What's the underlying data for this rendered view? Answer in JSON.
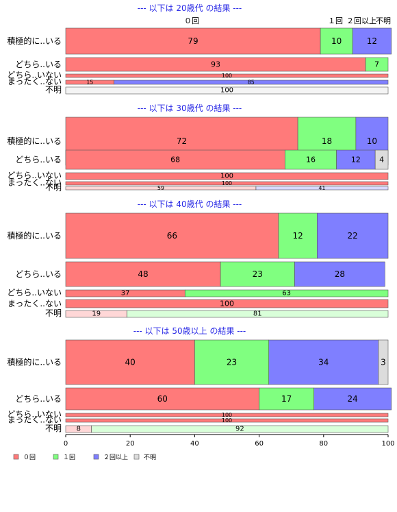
{
  "colors": {
    "zero": "#ff7a7a",
    "one": "#80ff80",
    "two_plus": "#7f7fff",
    "unknown": "#dcdcdc"
  },
  "legend": {
    "items": [
      "０回",
      "１回",
      "２回以上",
      "不明"
    ]
  },
  "top_labels": [
    "０回",
    "１回",
    "２回以上",
    "不明"
  ],
  "chart_data": {
    "type": "bar",
    "orientation": "horizontal",
    "stacked": true,
    "categories": [
      "０回",
      "１回",
      "２回以上",
      "不明"
    ],
    "xlim": [
      0,
      100
    ],
    "x_ticks": [
      0,
      20,
      40,
      60,
      80,
      100
    ],
    "panels": [
      {
        "title": "--- 以下は 20歳代 の結果 ---",
        "rows": [
          {
            "label": "積極的に..いる",
            "values": [
              79,
              10,
              12,
              0
            ]
          },
          {
            "label": "どちら..いる",
            "values": [
              93,
              7,
              0,
              0
            ]
          },
          {
            "label": "どちら..いない",
            "values": [
              100,
              0,
              0,
              0
            ]
          },
          {
            "label": "まったく..ない",
            "values": [
              15,
              0,
              85,
              0
            ]
          },
          {
            "label": "不明",
            "values": [
              0,
              0,
              0,
              100
            ]
          }
        ]
      },
      {
        "title": "--- 以下は 30歳代 の結果 ---",
        "rows": [
          {
            "label": "積極的に..いる",
            "values": [
              72,
              18,
              10,
              0
            ]
          },
          {
            "label": "どちら..いる",
            "values": [
              68,
              16,
              12,
              4
            ]
          },
          {
            "label": "どちら..いない",
            "values": [
              100,
              0,
              0,
              0
            ]
          },
          {
            "label": "まったく..ない",
            "values": [
              100,
              0,
              0,
              0
            ]
          },
          {
            "label": "不明",
            "values": [
              59,
              0,
              41,
              0
            ]
          }
        ]
      },
      {
        "title": "--- 以下は 40歳代 の結果 ---",
        "rows": [
          {
            "label": "積極的に..いる",
            "values": [
              66,
              12,
              22,
              0
            ]
          },
          {
            "label": "どちら..いる",
            "values": [
              48,
              23,
              28,
              0
            ]
          },
          {
            "label": "どちら..いない",
            "values": [
              37,
              63,
              0,
              0
            ]
          },
          {
            "label": "まったく..ない",
            "values": [
              100,
              0,
              0,
              0
            ]
          },
          {
            "label": "不明",
            "values": [
              19,
              81,
              0,
              0
            ]
          }
        ]
      },
      {
        "title": "--- 以下は 50歳以上 の結果 ---",
        "rows": [
          {
            "label": "積極的に..いる",
            "values": [
              40,
              23,
              34,
              3
            ]
          },
          {
            "label": "どちら..いる",
            "values": [
              60,
              17,
              24,
              0
            ]
          },
          {
            "label": "どちら..いない",
            "values": [
              100,
              0,
              0,
              0
            ]
          },
          {
            "label": "まったく..ない",
            "values": [
              100,
              0,
              0,
              0
            ]
          },
          {
            "label": "不明",
            "values": [
              8,
              92,
              0,
              0
            ]
          }
        ]
      }
    ]
  }
}
